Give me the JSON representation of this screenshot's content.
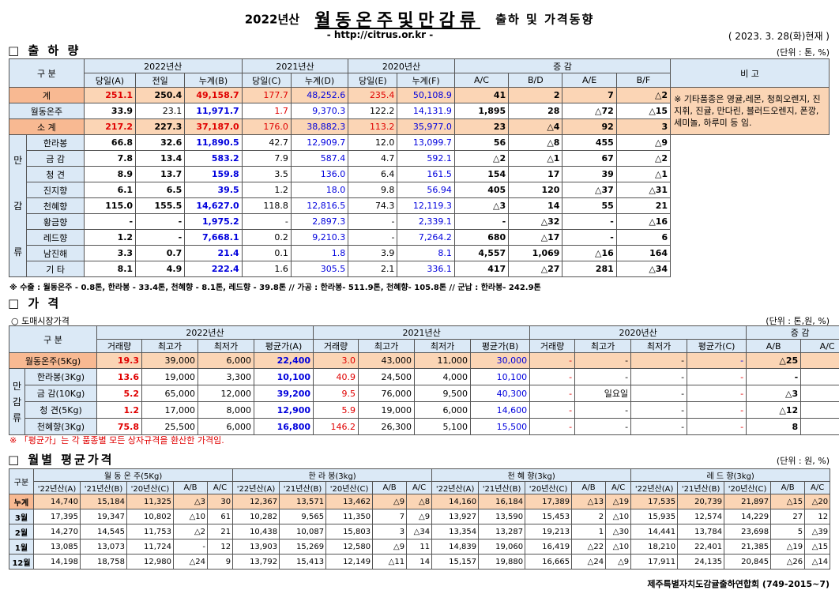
{
  "header": {
    "year": "2022년산",
    "title": "월동온주및만감류",
    "suffix": "출하 및 가격동향",
    "url": "- http://citrus.or.kr -",
    "date": "( 2023. 3. 28(화)현재 )"
  },
  "shipment": {
    "section": "□ 출 하 량",
    "unit": "(단위 : 톤, %)",
    "head": {
      "category": "구 분",
      "y2022": "2022년산",
      "y2021": "2021년산",
      "y2020": "2020년산",
      "change": "증 감",
      "remarks": "비 고",
      "cols": [
        "당일(A)",
        "전일",
        "누계(B)",
        "당일(C)",
        "누계(D)",
        "당일(E)",
        "누계(F)",
        "A/C",
        "B/D",
        "A/E",
        "B/F"
      ]
    },
    "total": {
      "label": "계",
      "v": [
        "251.1",
        "250.4",
        "49,158.7",
        "177.7",
        "48,252.6",
        "235.4",
        "50,108.9",
        "41",
        "2",
        "7",
        "△2"
      ]
    },
    "winter": {
      "label": "월동온주",
      "v": [
        "33.9",
        "23.1",
        "11,971.7",
        "1.7",
        "9,370.3",
        "122.2",
        "14,131.9",
        "1,895",
        "28",
        "△72",
        "△15"
      ]
    },
    "subtotal": {
      "label": "소 계",
      "v": [
        "217.2",
        "227.3",
        "37,187.0",
        "176.0",
        "38,882.3",
        "113.2",
        "35,977.0",
        "23",
        "△4",
        "92",
        "3"
      ]
    },
    "group_label": [
      "만",
      "감",
      "류"
    ],
    "rows": [
      {
        "label": "한라봉",
        "v": [
          "66.8",
          "32.6",
          "11,890.5",
          "42.7",
          "12,909.7",
          "12.0",
          "13,099.7",
          "56",
          "△8",
          "455",
          "△9"
        ]
      },
      {
        "label": "금 감",
        "v": [
          "7.8",
          "13.4",
          "583.2",
          "7.9",
          "587.4",
          "4.7",
          "592.1",
          "△2",
          "△1",
          "67",
          "△2"
        ]
      },
      {
        "label": "청 견",
        "v": [
          "8.9",
          "13.7",
          "159.8",
          "3.5",
          "136.0",
          "6.4",
          "161.5",
          "154",
          "17",
          "39",
          "△1"
        ]
      },
      {
        "label": "진지향",
        "v": [
          "6.1",
          "6.5",
          "39.5",
          "1.2",
          "18.0",
          "9.8",
          "56.94",
          "405",
          "120",
          "△37",
          "△31"
        ]
      },
      {
        "label": "천혜향",
        "v": [
          "115.0",
          "155.5",
          "14,627.0",
          "118.8",
          "12,816.5",
          "74.3",
          "12,119.3",
          "△3",
          "14",
          "55",
          "21"
        ]
      },
      {
        "label": "황금향",
        "v": [
          "-",
          "-",
          "1,975.2",
          "-",
          "2,897.3",
          "-",
          "2,339.1",
          "-",
          "△32",
          "-",
          "△16"
        ]
      },
      {
        "label": "레드향",
        "v": [
          "1.2",
          "-",
          "7,668.1",
          "0.2",
          "9,210.3",
          "-",
          "7,264.2",
          "680",
          "△17",
          "-",
          "6"
        ]
      },
      {
        "label": "남진해",
        "v": [
          "3.3",
          "0.7",
          "21.4",
          "0.1",
          "1.8",
          "3.9",
          "8.1",
          "4,557",
          "1,069",
          "△16",
          "164"
        ]
      },
      {
        "label": "기 타",
        "v": [
          "8.1",
          "4.9",
          "222.4",
          "1.6",
          "305.5",
          "2.1",
          "336.1",
          "417",
          "△27",
          "281",
          "△34"
        ]
      }
    ],
    "memo": "※ 기타품종은 영귤,레몬, 청희오렌지, 진지휘, 진귤, 만다린, 블러드오렌지, 폰깡,세미놀, 하루미 등 임.",
    "note": "※ 수출 : 월동온주 - 0.8톤, 한라봉 - 33.4톤, 천혜향 - 8.1톤, 레드향 - 39.8톤  //  가공  :  한라봉- 511.9톤, 천혜향- 105.8톤  //  군납 : 한라봉- 242.9톤"
  },
  "price": {
    "section": "□ 가  격",
    "sub": "○ 도매시장가격",
    "unit": "(단위 : 톤,원, %)",
    "head": {
      "category": "구 분",
      "y2022": "2022년산",
      "y2021": "2021년산",
      "y2020": "2020년산",
      "change": "증 감",
      "cols": [
        "거래량",
        "최고가",
        "최저가",
        "평균가(A)",
        "거래량",
        "최고가",
        "최저가",
        "평균가(B)",
        "거래량",
        "최고가",
        "최저가",
        "평균가(C)",
        "A/B",
        "A/C"
      ]
    },
    "winter": {
      "label": "월동온주(5Kg)",
      "v": [
        "19.3",
        "39,000",
        "6,000",
        "22,400",
        "3.0",
        "43,000",
        "11,000",
        "30,000",
        "-",
        "-",
        "-",
        "-",
        "△25",
        "-"
      ]
    },
    "group_label": [
      "만",
      "감",
      "류"
    ],
    "rows": [
      {
        "label": "한라봉(3Kg)",
        "v": [
          "13.6",
          "19,000",
          "3,300",
          "10,100",
          "40.9",
          "24,500",
          "4,000",
          "10,100",
          "-",
          "-",
          "-",
          "-",
          "-",
          "-"
        ]
      },
      {
        "label": "금 감(10Kg)",
        "v": [
          "5.2",
          "65,000",
          "12,000",
          "39,200",
          "9.5",
          "76,000",
          "9,500",
          "40,300",
          "-",
          "일요일",
          "-",
          "-",
          "△3",
          "-"
        ]
      },
      {
        "label": "청  견(5Kg)",
        "v": [
          "1.2",
          "17,000",
          "8,000",
          "12,900",
          "5.9",
          "19,000",
          "6,000",
          "14,600",
          "-",
          "-",
          "-",
          "-",
          "△12",
          "-"
        ]
      },
      {
        "label": "천혜향(3Kg)",
        "v": [
          "75.8",
          "25,500",
          "6,000",
          "16,800",
          "146.2",
          "26,300",
          "5,100",
          "15,500",
          "-",
          "-",
          "-",
          "-",
          "8",
          "-"
        ]
      }
    ],
    "note": "※ 「평균가」는 각 품종별 모든 상자규격을 환산한 가격임."
  },
  "monthly": {
    "section": "□ 월별 평균가격",
    "unit": "(단위 : 원, %)",
    "head": {
      "category": "구분",
      "groups": [
        "월 동 온 주(5Kg)",
        "한 라 봉(3kg)",
        "천 혜 향(3kg)",
        "레 드 향(3kg)"
      ],
      "cols": [
        "'22년산(A)",
        "'21년산(B)",
        "'20년산(C)",
        "A/B",
        "A/C"
      ]
    },
    "rows": [
      {
        "label": "누계",
        "v": [
          "14,740",
          "15,184",
          "11,325",
          "△3",
          "30",
          "12,367",
          "13,571",
          "13,462",
          "△9",
          "△8",
          "14,160",
          "16,184",
          "17,389",
          "△13",
          "△19",
          "17,535",
          "20,739",
          "21,897",
          "△15",
          "△20"
        ]
      },
      {
        "label": "3월",
        "v": [
          "17,395",
          "19,347",
          "10,802",
          "△10",
          "61",
          "10,282",
          "9,565",
          "11,350",
          "7",
          "△9",
          "13,927",
          "13,590",
          "15,453",
          "2",
          "△10",
          "15,935",
          "12,574",
          "14,229",
          "27",
          "12"
        ]
      },
      {
        "label": "2월",
        "v": [
          "14,270",
          "14,545",
          "11,753",
          "△2",
          "21",
          "10,438",
          "10,087",
          "15,803",
          "3",
          "△34",
          "13,354",
          "13,287",
          "19,213",
          "1",
          "△30",
          "14,441",
          "13,784",
          "23,698",
          "5",
          "△39"
        ]
      },
      {
        "label": "1월",
        "v": [
          "13,085",
          "13,073",
          "11,724",
          "-",
          "12",
          "13,903",
          "15,269",
          "12,580",
          "△9",
          "11",
          "14,839",
          "19,060",
          "16,419",
          "△22",
          "△10",
          "18,210",
          "22,401",
          "21,385",
          "△19",
          "△15"
        ]
      },
      {
        "label": "12월",
        "v": [
          "14,198",
          "18,758",
          "12,980",
          "△24",
          "9",
          "13,792",
          "15,413",
          "12,149",
          "△11",
          "14",
          "15,157",
          "19,880",
          "16,665",
          "△24",
          "△9",
          "17,911",
          "24,135",
          "20,845",
          "△26",
          "△14"
        ]
      }
    ]
  },
  "footer": "제주특별자치도감귤출하연합회 (749-2015~7)"
}
